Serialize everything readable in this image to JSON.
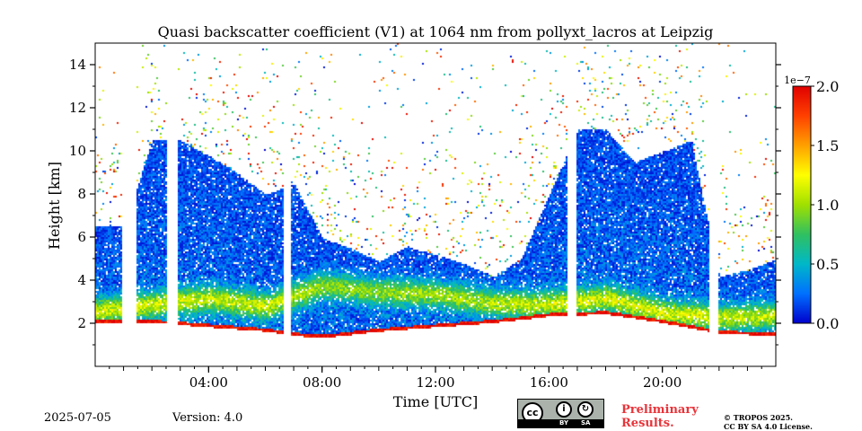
{
  "chart_data": {
    "type": "heatmap",
    "title": "Quasi backscatter coefficient (V1) at 1064 nm from pollyxt_lacros at Leipzig",
    "xlabel": "Time [UTC]",
    "ylabel": "Height [km]",
    "xlim": [
      0,
      24
    ],
    "ylim": [
      0,
      15
    ],
    "x_tick_labels": [
      {
        "hour": 4,
        "label": "04:00"
      },
      {
        "hour": 8,
        "label": "08:00"
      },
      {
        "hour": 12,
        "label": "12:00"
      },
      {
        "hour": 16,
        "label": "16:00"
      },
      {
        "hour": 20,
        "label": "20:00"
      }
    ],
    "y_ticks": [
      2,
      4,
      6,
      8,
      10,
      12,
      14
    ],
    "colorbar": {
      "vmin": 0.0,
      "vmax": 2.0,
      "exponent_label": "1e−7",
      "ticks": [
        {
          "value": 0.0,
          "label": "0.0"
        },
        {
          "value": 0.5,
          "label": "0.5"
        },
        {
          "value": 1.0,
          "label": "1.0"
        },
        {
          "value": 1.5,
          "label": "1.5"
        },
        {
          "value": 2.0,
          "label": "2.0"
        }
      ],
      "colors": [
        "#0000cc",
        "#0070ff",
        "#00b8c8",
        "#30c060",
        "#a0e000",
        "#ffff00",
        "#ffa000",
        "#ff4000",
        "#e00000"
      ]
    },
    "data_gaps_hours": [
      [
        0.9,
        1.4
      ],
      [
        2.5,
        2.85
      ],
      [
        6.6,
        6.9
      ],
      [
        16.6,
        16.95
      ],
      [
        21.6,
        21.95
      ]
    ],
    "cloud_base_km": [
      [
        0,
        2.2
      ],
      [
        2,
        2.2
      ],
      [
        4,
        2.0
      ],
      [
        6,
        1.8
      ],
      [
        7,
        1.6
      ],
      [
        8,
        1.5
      ],
      [
        10,
        1.8
      ],
      [
        12,
        2.0
      ],
      [
        14,
        2.2
      ],
      [
        16,
        2.5
      ],
      [
        18,
        2.6
      ],
      [
        20,
        2.2
      ],
      [
        22,
        1.7
      ],
      [
        24,
        1.6
      ]
    ],
    "aerosol_layer_top_km": [
      [
        0,
        6.5
      ],
      [
        1,
        6.5
      ],
      [
        2,
        10.5
      ],
      [
        3,
        10.5
      ],
      [
        4,
        9.8
      ],
      [
        5,
        9.0
      ],
      [
        6,
        8.0
      ],
      [
        7,
        8.5
      ],
      [
        8,
        6.0
      ],
      [
        9,
        5.5
      ],
      [
        10,
        4.9
      ],
      [
        11,
        5.6
      ],
      [
        12,
        5.2
      ],
      [
        13,
        4.8
      ],
      [
        14,
        4.2
      ],
      [
        15,
        5.0
      ],
      [
        16,
        8.0
      ],
      [
        17,
        11.0
      ],
      [
        18,
        11.0
      ],
      [
        19,
        9.5
      ],
      [
        20,
        10.0
      ],
      [
        21,
        10.5
      ],
      [
        22,
        4.2
      ],
      [
        23,
        4.5
      ],
      [
        24,
        5.0
      ]
    ],
    "enhanced_layer_km": [
      [
        0,
        2.6
      ],
      [
        4,
        3.2
      ],
      [
        6,
        2.8
      ],
      [
        8,
        3.8
      ],
      [
        10,
        3.5
      ],
      [
        12,
        3.4
      ],
      [
        14,
        3.0
      ],
      [
        16,
        2.9
      ],
      [
        18,
        3.2
      ],
      [
        20,
        2.5
      ],
      [
        22,
        2.3
      ],
      [
        24,
        2.4
      ]
    ]
  },
  "footer": {
    "date": "2025-07-05",
    "version": "Version: 4.0",
    "preliminary_line1": "Preliminary",
    "preliminary_line2": "Results.",
    "copyright_line1": "© TROPOS 2025.",
    "copyright_line2": "CC BY SA 4.0 License.",
    "license_badge": {
      "icon": "cc-by-sa-icon",
      "by": "BY",
      "sa": "SA"
    }
  }
}
